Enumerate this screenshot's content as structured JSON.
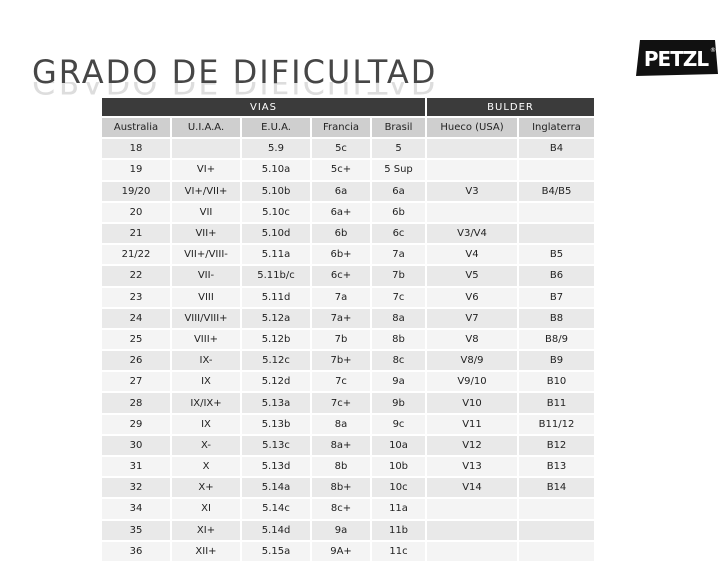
{
  "slide": {
    "title": "GRADO DE DIFICULTAD",
    "logo_text": "PETZL",
    "logo_mark": "®"
  },
  "table": {
    "groups": [
      "VIAS",
      "BULDER"
    ],
    "columns": [
      "Australia",
      "U.I.A.A.",
      "E.U.A.",
      "Francia",
      "Brasil",
      "Hueco (USA)",
      "Inglaterra"
    ],
    "rows": [
      [
        "18",
        "",
        "5.9",
        "5c",
        "5",
        "",
        "B4"
      ],
      [
        "19",
        "VI+",
        "5.10a",
        "5c+",
        "5 Sup",
        "",
        ""
      ],
      [
        "19/20",
        "VI+/VII+",
        "5.10b",
        "6a",
        "6a",
        "V3",
        "B4/B5"
      ],
      [
        "20",
        "VII",
        "5.10c",
        "6a+",
        "6b",
        "",
        ""
      ],
      [
        "21",
        "VII+",
        "5.10d",
        "6b",
        "6c",
        "V3/V4",
        ""
      ],
      [
        "21/22",
        "VII+/VIII-",
        "5.11a",
        "6b+",
        "7a",
        "V4",
        "B5"
      ],
      [
        "22",
        "VII-",
        "5.11b/c",
        "6c+",
        "7b",
        "V5",
        "B6"
      ],
      [
        "23",
        "VIII",
        "5.11d",
        "7a",
        "7c",
        "V6",
        "B7"
      ],
      [
        "24",
        "VIII/VIII+",
        "5.12a",
        "7a+",
        "8a",
        "V7",
        "B8"
      ],
      [
        "25",
        "VIII+",
        "5.12b",
        "7b",
        "8b",
        "V8",
        "B8/9"
      ],
      [
        "26",
        "IX-",
        "5.12c",
        "7b+",
        "8c",
        "V8/9",
        "B9"
      ],
      [
        "27",
        "IX",
        "5.12d",
        "7c",
        "9a",
        "V9/10",
        "B10"
      ],
      [
        "28",
        "IX/IX+",
        "5.13a",
        "7c+",
        "9b",
        "V10",
        "B11"
      ],
      [
        "29",
        "IX",
        "5.13b",
        "8a",
        "9c",
        "V11",
        "B11/12"
      ],
      [
        "30",
        "X-",
        "5.13c",
        "8a+",
        "10a",
        "V12",
        "B12"
      ],
      [
        "31",
        "X",
        "5.13d",
        "8b",
        "10b",
        "V13",
        "B13"
      ],
      [
        "32",
        "X+",
        "5.14a",
        "8b+",
        "10c",
        "V14",
        "B14"
      ],
      [
        "34",
        "XI",
        "5.14c",
        "8c+",
        "11a",
        "",
        ""
      ],
      [
        "35",
        "XI+",
        "5.14d",
        "9a",
        "11b",
        "",
        ""
      ],
      [
        "36",
        "XII+",
        "5.15a",
        "9A+",
        "11c",
        "",
        ""
      ]
    ]
  }
}
